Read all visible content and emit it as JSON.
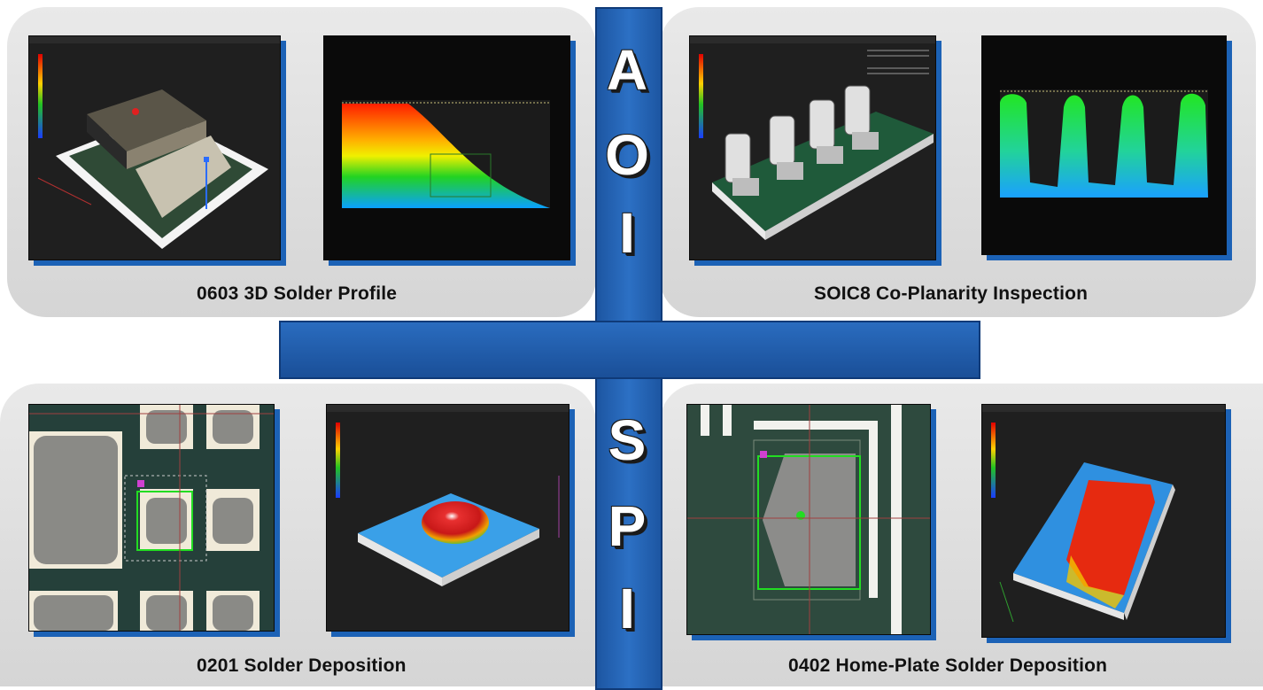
{
  "cross": {
    "top_letters": [
      "A",
      "O",
      "I"
    ],
    "bottom_letters": [
      "S",
      "P",
      "I"
    ],
    "color": "#1f5dad"
  },
  "panels": {
    "top_left": {
      "caption": "0603 3D Solder Profile"
    },
    "top_right": {
      "caption": "SOIC8 Co-Planarity Inspection"
    },
    "bottom_left": {
      "caption": "0201 Solder Deposition"
    },
    "bottom_right": {
      "caption": "0402 Home-Plate Solder Deposition"
    }
  },
  "colors": {
    "panel_bg": "#dcdcdc",
    "frame_shadow": "#1c62b6",
    "screen_bg": "#1e1e1e"
  }
}
